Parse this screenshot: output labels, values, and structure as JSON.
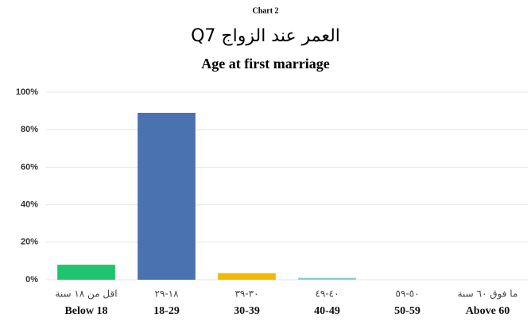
{
  "chart_data": {
    "type": "bar",
    "label": "Chart 2",
    "title": "العمر عند الزواج Q7",
    "subtitle": "Age at first marriage",
    "categories": [
      "Below 18",
      "18-29",
      "30-39",
      "40-49",
      "50-59",
      "Above 60"
    ],
    "categories_ar": [
      "اقل من ١٨ سنة",
      "١٨-٢٩",
      "٣٠-٣٩",
      "٤٠-٤٩",
      "٥٠-٥٩",
      "ما فوق ٦٠ سنة"
    ],
    "values": [
      8,
      89,
      3.5,
      1,
      0,
      0
    ],
    "colors": [
      "#1fc46e",
      "#4a72b0",
      "#f5b800",
      "#7fd0d0",
      "#cccccc",
      "#cccccc"
    ],
    "ylim": [
      0,
      100
    ],
    "yticks": [
      {
        "value": 0,
        "label": "0%"
      },
      {
        "value": 20,
        "label": "20%"
      },
      {
        "value": 40,
        "label": "40%"
      },
      {
        "value": 60,
        "label": "60%"
      },
      {
        "value": 80,
        "label": "80%"
      },
      {
        "value": 100,
        "label": "100%"
      }
    ],
    "grid": true
  }
}
